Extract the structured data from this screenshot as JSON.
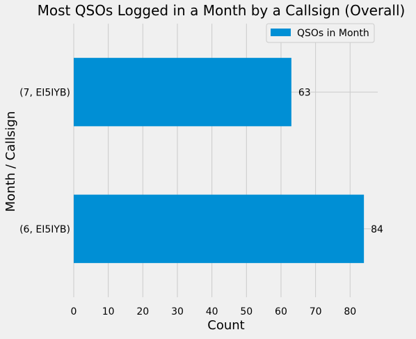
{
  "chart_data": {
    "type": "bar",
    "orientation": "horizontal",
    "title": "Most QSOs Logged in a Month by a Callsign (Overall)",
    "xlabel": "Count",
    "ylabel": "Month / Callsign",
    "categories": [
      "(6, EI5IYB)",
      "(7, EI5IYB)"
    ],
    "series": [
      {
        "name": "QSOs in Month",
        "values": [
          84,
          63
        ],
        "color": "#008fd5"
      }
    ],
    "data_labels": [
      "84",
      "63"
    ],
    "xlim": [
      0,
      88
    ],
    "xticks": [
      0,
      10,
      20,
      30,
      40,
      50,
      60,
      70,
      80
    ],
    "grid": true,
    "legend": "top-right"
  }
}
